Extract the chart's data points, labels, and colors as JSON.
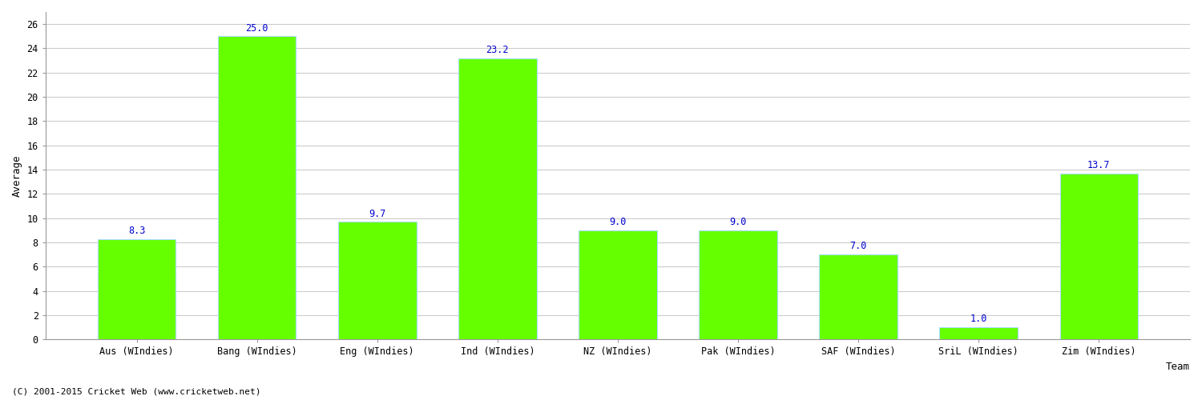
{
  "categories": [
    "Aus (WIndies)",
    "Bang (WIndies)",
    "Eng (WIndies)",
    "Ind (WIndies)",
    "NZ (WIndies)",
    "Pak (WIndies)",
    "SAF (WIndies)",
    "SriL (WIndies)",
    "Zim (WIndies)"
  ],
  "values": [
    8.3,
    25.0,
    9.7,
    23.2,
    9.0,
    9.0,
    7.0,
    1.0,
    13.7
  ],
  "bar_color": "#66FF00",
  "bar_edge_color": "#AADDFF",
  "label_color": "#0000CC",
  "xlabel": "Team",
  "ylabel": "Average",
  "ylim": [
    0,
    27
  ],
  "yticks": [
    0,
    2,
    4,
    6,
    8,
    10,
    12,
    14,
    16,
    18,
    20,
    22,
    24,
    26
  ],
  "grid_color": "#CCCCCC",
  "background_color": "#FFFFFF",
  "footer_text": "(C) 2001-2015 Cricket Web (www.cricketweb.net)",
  "label_fontsize": 8.5,
  "axis_label_fontsize": 9,
  "tick_fontsize": 8.5,
  "footer_fontsize": 8,
  "bar_width": 0.65
}
